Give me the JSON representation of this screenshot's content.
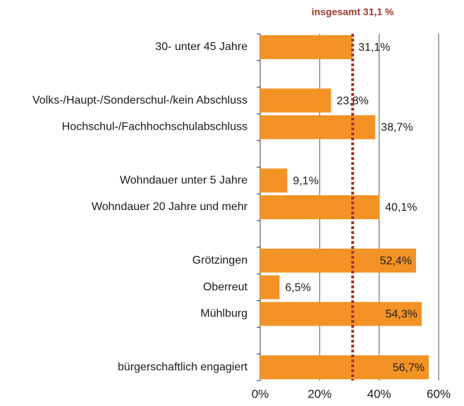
{
  "chart_data": {
    "type": "barh",
    "categories": [
      "30- unter 45 Jahre",
      null,
      "Volks-/Haupt-/Sonderschul-/kein Abschluss",
      "Hochschul-/Fachhochschulabschluss",
      null,
      "Wohndauer unter 5 Jahre",
      "Wohndauer 20 Jahre und mehr",
      null,
      "Grötzingen",
      "Oberreut",
      "Mühlburg",
      null,
      "bürgerschaftlich engagiert"
    ],
    "values": [
      31.1,
      null,
      23.8,
      38.7,
      null,
      9.1,
      40.1,
      null,
      52.4,
      6.5,
      54.3,
      null,
      56.7
    ],
    "value_labels": [
      "31,1%",
      null,
      "23,8%",
      "38,7%",
      null,
      "9,1%",
      "40,1%",
      null,
      "52,4%",
      "6,5%",
      "54,3%",
      null,
      "56,7%"
    ],
    "color": "#f39325",
    "xlim": [
      0,
      60
    ],
    "xticks": [
      {
        "value": 0,
        "label": "0%"
      },
      {
        "value": 20,
        "label": "20%"
      },
      {
        "value": 40,
        "label": "40%"
      },
      {
        "value": 60,
        "label": "60%"
      }
    ],
    "grid": true,
    "reference_line": {
      "value": 31.1,
      "label": "insgesamt 31,1 %",
      "color": "#a0392a"
    }
  }
}
